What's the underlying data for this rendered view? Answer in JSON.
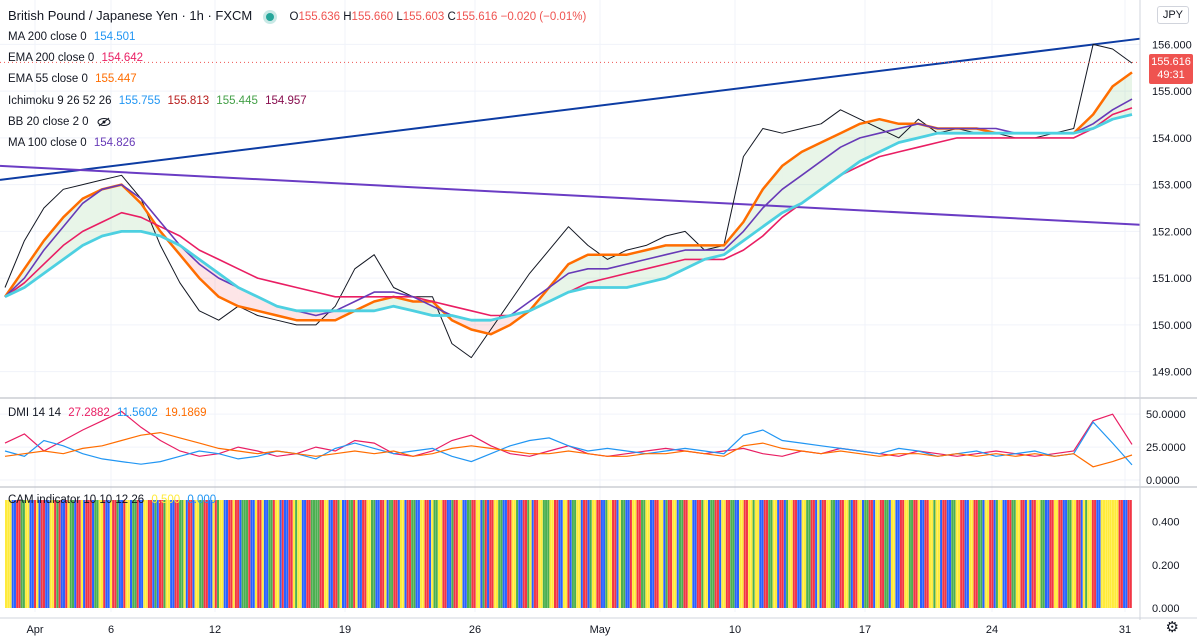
{
  "header": {
    "symbol": "British Pound / Japanese Yen · 1h · FXCM",
    "ohlc": {
      "o_label": "O",
      "o": "155.636",
      "h_label": "H",
      "h": "155.660",
      "l_label": "L",
      "l": "155.603",
      "c_label": "C",
      "c": "155.616",
      "change": "−0.020 (−0.01%)"
    }
  },
  "indicators": [
    {
      "label": "MA 200 close 0",
      "values": [
        {
          "v": "154.501",
          "color": "#2196f3"
        }
      ]
    },
    {
      "label": "EMA 200 close 0",
      "values": [
        {
          "v": "154.642",
          "color": "#e91e63"
        }
      ]
    },
    {
      "label": "EMA 55 close 0",
      "values": [
        {
          "v": "155.447",
          "color": "#ff6d00"
        }
      ]
    },
    {
      "label": "Ichimoku 9 26 52 26",
      "values": [
        {
          "v": "155.755",
          "color": "#2196f3"
        },
        {
          "v": "155.813",
          "color": "#b71c1c"
        },
        {
          "v": "155.445",
          "color": "#43a047"
        },
        {
          "v": "154.957",
          "color": "#880e4f"
        }
      ]
    },
    {
      "label": "BB 20 close 2 0",
      "values": [],
      "hidden_icon": "eye-crossed-icon"
    },
    {
      "label": "MA 100 close 0",
      "values": [
        {
          "v": "154.826",
          "color": "#673ab7"
        }
      ]
    }
  ],
  "dmi_legend": {
    "label": "DMI 14 14",
    "values": [
      {
        "v": "27.2882",
        "color": "#e91e63"
      },
      {
        "v": "11.5602",
        "color": "#2196f3"
      },
      {
        "v": "19.1869",
        "color": "#ff6d00"
      }
    ]
  },
  "cam_legend": {
    "label": "CAM indicator 10 10 12 26",
    "values": [
      {
        "v": "0.500",
        "color": "#ffeb3b"
      },
      {
        "v": "0.000",
        "color": "#2196f3"
      }
    ]
  },
  "currency_button": "JPY",
  "last_price": {
    "price": "155.616",
    "countdown": "49:31",
    "color": "#ef5350"
  },
  "settings_icon": "gear-icon",
  "chart_data": [
    {
      "type": "line",
      "title": "British Pound / Japanese Yen · 1h · FXCM",
      "x_labels": [
        "Apr",
        "6",
        "12",
        "19",
        "26",
        "May",
        "10",
        "17",
        "24",
        "31"
      ],
      "y_ticks": [
        "156.000",
        "155.000",
        "154.000",
        "153.000",
        "152.000",
        "151.000",
        "150.000",
        "149.000"
      ],
      "ylim": [
        148.5,
        156.35
      ],
      "series": [
        {
          "name": "Price",
          "color": "#131722",
          "values": [
            150.8,
            151.8,
            152.5,
            152.9,
            153.0,
            153.1,
            153.2,
            152.7,
            151.7,
            150.9,
            150.3,
            150.1,
            150.4,
            150.2,
            150.1,
            150.0,
            150.0,
            150.4,
            151.2,
            151.5,
            150.8,
            150.6,
            150.6,
            149.6,
            149.3,
            149.9,
            150.5,
            151.1,
            151.6,
            152.1,
            151.7,
            151.4,
            151.6,
            151.7,
            151.9,
            152.0,
            151.6,
            151.7,
            153.6,
            154.2,
            154.1,
            154.2,
            154.3,
            154.6,
            154.4,
            154.2,
            154.0,
            154.4,
            154.1,
            154.2,
            154.1,
            154.1,
            154.0,
            154.0,
            154.1,
            154.2,
            156.0,
            155.9,
            155.6
          ]
        },
        {
          "name": "EMA 55",
          "color": "#ff6d00",
          "values": [
            150.6,
            151.2,
            151.8,
            152.3,
            152.7,
            152.9,
            153.0,
            152.6,
            152.0,
            151.5,
            151.0,
            150.6,
            150.4,
            150.3,
            150.2,
            150.1,
            150.1,
            150.1,
            150.3,
            150.5,
            150.6,
            150.5,
            150.5,
            150.1,
            149.9,
            149.8,
            150.0,
            150.3,
            150.8,
            151.3,
            151.5,
            151.5,
            151.5,
            151.6,
            151.7,
            151.7,
            151.7,
            151.7,
            152.2,
            152.9,
            153.4,
            153.7,
            153.9,
            154.1,
            154.3,
            154.4,
            154.3,
            154.3,
            154.2,
            154.2,
            154.2,
            154.1,
            154.1,
            154.1,
            154.1,
            154.1,
            154.5,
            155.1,
            155.4
          ]
        },
        {
          "name": "EMA 200",
          "color": "#e91e63",
          "values": [
            150.6,
            150.9,
            151.3,
            151.7,
            152.0,
            152.2,
            152.4,
            152.3,
            152.1,
            151.9,
            151.6,
            151.4,
            151.2,
            151.0,
            150.9,
            150.8,
            150.7,
            150.6,
            150.6,
            150.6,
            150.6,
            150.6,
            150.5,
            150.4,
            150.3,
            150.2,
            150.2,
            150.3,
            150.5,
            150.7,
            150.9,
            151.0,
            151.1,
            151.2,
            151.3,
            151.4,
            151.4,
            151.4,
            151.6,
            151.9,
            152.3,
            152.6,
            152.9,
            153.2,
            153.4,
            153.6,
            153.7,
            153.8,
            153.9,
            154.0,
            154.0,
            154.0,
            154.0,
            154.0,
            154.0,
            154.0,
            154.2,
            154.5,
            154.64
          ]
        },
        {
          "name": "MA 100",
          "color": "#673ab7",
          "values": [
            150.6,
            151.0,
            151.6,
            152.1,
            152.6,
            152.9,
            153.0,
            152.7,
            152.2,
            151.7,
            151.3,
            151.0,
            150.8,
            150.6,
            150.4,
            150.3,
            150.2,
            150.3,
            150.5,
            150.7,
            150.7,
            150.6,
            150.4,
            150.2,
            150.1,
            150.1,
            150.2,
            150.5,
            150.8,
            151.1,
            151.2,
            151.2,
            151.3,
            151.4,
            151.5,
            151.6,
            151.6,
            151.6,
            152.0,
            152.5,
            152.9,
            153.2,
            153.5,
            153.8,
            154.0,
            154.1,
            154.2,
            154.3,
            154.2,
            154.2,
            154.2,
            154.2,
            154.1,
            154.1,
            154.1,
            154.1,
            154.3,
            154.6,
            154.83
          ]
        },
        {
          "name": "MA 200",
          "color": "#4dd0e1",
          "values": [
            150.6,
            150.8,
            151.1,
            151.4,
            151.7,
            151.9,
            152.0,
            152.0,
            151.9,
            151.7,
            151.4,
            151.1,
            150.8,
            150.6,
            150.4,
            150.3,
            150.3,
            150.3,
            150.3,
            150.3,
            150.4,
            150.3,
            150.2,
            150.2,
            150.1,
            150.1,
            150.2,
            150.3,
            150.5,
            150.7,
            150.8,
            150.8,
            150.8,
            150.9,
            151.0,
            151.2,
            151.4,
            151.5,
            151.8,
            152.1,
            152.4,
            152.6,
            152.9,
            153.2,
            153.5,
            153.7,
            153.9,
            154.0,
            154.1,
            154.1,
            154.1,
            154.1,
            154.1,
            154.1,
            154.1,
            154.1,
            154.2,
            154.4,
            154.5
          ]
        }
      ],
      "trendlines": [
        {
          "name": "rising-trendline",
          "color": "#0d3ca3",
          "from": [
            0,
            153.1
          ],
          "to": [
            58,
            156.1
          ]
        },
        {
          "name": "falling-trendline",
          "color": "#6a3cc4",
          "from": [
            0,
            153.4
          ],
          "to": [
            58,
            152.15
          ]
        }
      ]
    },
    {
      "type": "line",
      "title": "DMI 14 14",
      "y_ticks": [
        "50.0000",
        "25.0000",
        "0.0000"
      ],
      "ylim": [
        0,
        60
      ],
      "series": [
        {
          "name": "DMI 1",
          "color": "#e91e63",
          "values": [
            28,
            35,
            22,
            30,
            38,
            45,
            52,
            40,
            30,
            22,
            18,
            20,
            25,
            22,
            18,
            20,
            25,
            22,
            30,
            28,
            20,
            18,
            22,
            30,
            34,
            26,
            20,
            18,
            22,
            26,
            20,
            18,
            20,
            22,
            24,
            22,
            20,
            22,
            24,
            20,
            18,
            22,
            20,
            24,
            22,
            20,
            18,
            22,
            20,
            18,
            20,
            22,
            20,
            18,
            20,
            22,
            45,
            50,
            27
          ]
        },
        {
          "name": "DMI 2",
          "color": "#2196f3",
          "values": [
            22,
            18,
            30,
            26,
            20,
            16,
            14,
            12,
            14,
            18,
            22,
            20,
            16,
            18,
            22,
            20,
            16,
            24,
            28,
            24,
            20,
            22,
            24,
            18,
            14,
            20,
            26,
            30,
            32,
            26,
            22,
            24,
            22,
            20,
            22,
            24,
            22,
            20,
            34,
            38,
            30,
            28,
            26,
            24,
            22,
            20,
            24,
            22,
            18,
            20,
            22,
            18,
            20,
            22,
            18,
            20,
            44,
            28,
            11.5
          ]
        },
        {
          "name": "DMI 3",
          "color": "#ff6d00",
          "values": [
            18,
            20,
            22,
            20,
            24,
            26,
            30,
            34,
            36,
            32,
            28,
            24,
            22,
            20,
            22,
            20,
            18,
            20,
            22,
            20,
            22,
            18,
            20,
            24,
            26,
            24,
            22,
            20,
            20,
            22,
            20,
            18,
            18,
            20,
            20,
            22,
            20,
            18,
            26,
            28,
            24,
            22,
            20,
            22,
            20,
            18,
            20,
            20,
            18,
            20,
            18,
            20,
            18,
            20,
            18,
            20,
            10,
            14,
            19
          ]
        }
      ]
    },
    {
      "type": "bar",
      "title": "CAM indicator 10 10 12 26",
      "y_ticks": [
        "0.400",
        "0.200",
        "0.000"
      ],
      "ylim": [
        0,
        0.5
      ],
      "bar_value": 0.5,
      "palette": {
        "Y": "#ffeb3b",
        "B": "#2962ff",
        "R": "#f23645",
        "G": "#4caf50"
      },
      "colors": "YYYBBRRGGYYBBRYBRRBBYYRGRBBRYGGBRRYBRRRBGGYYRBBYRRGBBRYYBGGRBBYYRRBGBRRGYYBBRRGGYBRRBYYGGRRBBYRGYYBBRRYRRBGGGRBBYRRYBBGGRYYBRBBRRYGYYBBRRGGGGRRYYBBRRGYBBRGGRYBBRRYYGGBBRRYBGGRRBYYBRRGGBBYYRRBYGGYYRRBBGRRYYBBGGRRYYBGRBRRYYGGBBRRYYGBBRRGYBRRYYGGGYYRRBBYYRBGGYYBRRBGYYRRBBGYYRRBYGGBBRYYRRGGYYBBRRYYBGRRYYBGGRRYYBBRRGYYBGGRRBYYRRGGBBYYRRYYGYYBBRRGGYYBRRBGYYRRBBYYGGRRBYBRRYYGGBBRRYYGBRRYYBGGRRBYYRRGGBYYBBRRYYGGRRYBBRRYYGYYBRRBBGGYYRRBBYYRRGGBYYRRBGYYBBRRGGYYRRBYBRRYYGGBBRRYYRRBBGGYYRRBYGYYRRBBYYYYYYYYRRBBRR"
    }
  ]
}
